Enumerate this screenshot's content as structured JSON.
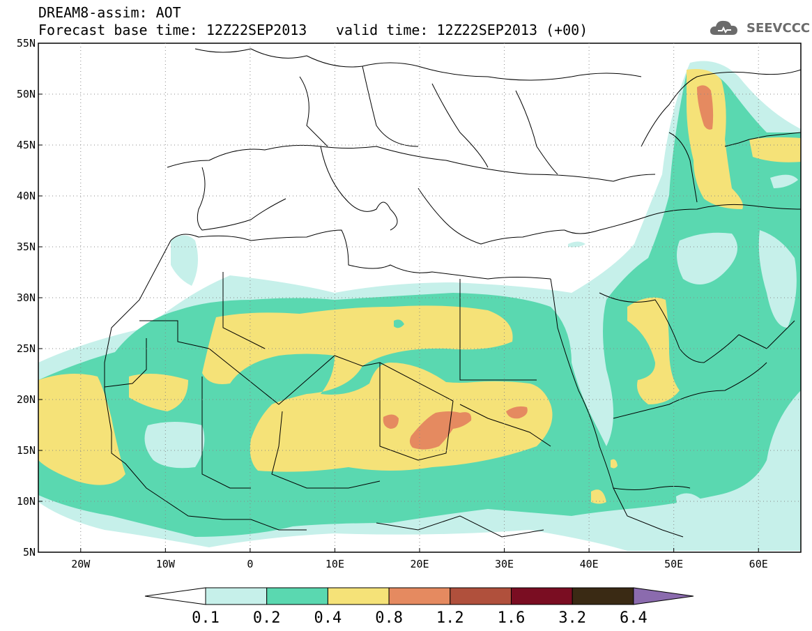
{
  "header": {
    "title": "DREAM8-assim: AOT",
    "base_time": "Forecast base time: 12Z22SEP2013",
    "valid_time": "valid time: 12Z22SEP2013 (+00)",
    "logo_text": "SEEVCCC"
  },
  "map": {
    "variable": "AOT",
    "lon_range": [
      -25,
      65
    ],
    "lat_range": [
      5,
      55
    ],
    "lat_labels": [
      "55N",
      "50N",
      "45N",
      "40N",
      "35N",
      "30N",
      "25N",
      "20N",
      "15N",
      "10N",
      "5N"
    ],
    "lon_labels": [
      "20W",
      "10W",
      "0",
      "10E",
      "20E",
      "30E",
      "40E",
      "50E",
      "60E"
    ],
    "grid": "dotted"
  },
  "colorbar": {
    "labels": [
      "0.1",
      "0.2",
      "0.4",
      "0.8",
      "1.2",
      "1.6",
      "3.2",
      "6.4"
    ],
    "colors": [
      "#ffffff",
      "#c6f0ea",
      "#5ad8b0",
      "#f5e278",
      "#e58a60",
      "#b0503c",
      "#7a0d22",
      "#3a2a14",
      "#8b6bae"
    ]
  },
  "colors": {
    "level1": "#c6f0ea",
    "level2": "#5ad8b0",
    "level3": "#f5e278",
    "level4": "#e58a60"
  }
}
